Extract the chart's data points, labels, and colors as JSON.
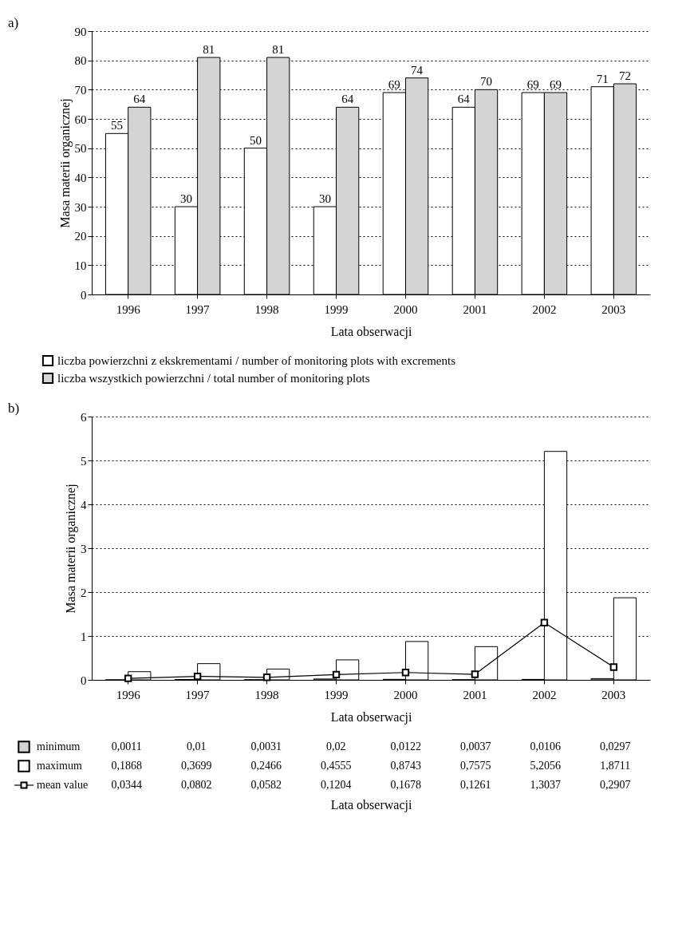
{
  "chart_data": [
    {
      "type": "bar",
      "annotations": [
        "a)"
      ],
      "categories": [
        "1996",
        "1997",
        "1998",
        "1999",
        "2000",
        "2001",
        "2002",
        "2003"
      ],
      "xlabel": "Lata obserwacji",
      "ylabel": "Masa materii organicznej",
      "ylim": [
        0,
        90
      ],
      "yticks": [
        0,
        10,
        20,
        30,
        40,
        50,
        60,
        70,
        80,
        90
      ],
      "grid": "y",
      "legend": "bottom",
      "data_labels": true,
      "series": [
        {
          "name": "liczba powierzchni z ekskrementami / number of monitoring plots with excrements",
          "color": "#ffffff",
          "values": [
            55,
            30,
            50,
            30,
            69,
            64,
            69,
            71
          ]
        },
        {
          "name": "liczba wszystkich powierzchni / total number of monitoring plots",
          "color": "#d4d4d4",
          "values": [
            64,
            81,
            81,
            64,
            74,
            70,
            69,
            72
          ]
        }
      ]
    },
    {
      "type": "bar",
      "annotations": [
        "b)"
      ],
      "categories": [
        "1996",
        "1997",
        "1998",
        "1999",
        "2000",
        "2001",
        "2002",
        "2003"
      ],
      "xlabel": "Lata obserwacji",
      "ylabel": "Masa materii organicznej",
      "ylim": [
        0,
        6
      ],
      "yticks": [
        0,
        1,
        2,
        3,
        4,
        5,
        6
      ],
      "grid": "y",
      "legend": "bottom left",
      "series": [
        {
          "name": "minimum",
          "color": "#d4d4d4",
          "values": [
            0.0011,
            0.01,
            0.0031,
            0.02,
            0.0122,
            0.0037,
            0.0106,
            0.0297
          ],
          "value_labels": [
            "0,0011",
            "0,01",
            "0,0031",
            "0,02",
            "0,0122",
            "0,0037",
            "0,0106",
            "0,0297"
          ]
        },
        {
          "name": "maximum",
          "color": "#ffffff",
          "values": [
            0.1868,
            0.3699,
            0.2466,
            0.4555,
            0.8743,
            0.7575,
            5.2056,
            1.8711
          ],
          "value_labels": [
            "0,1868",
            "0,3699",
            "0,2466",
            "0,4555",
            "0,8743",
            "0,7575",
            "5,2056",
            "1,8711"
          ]
        },
        {
          "name": "mean value",
          "type": "line",
          "marker": "square",
          "color": "#000000",
          "values": [
            0.0344,
            0.0802,
            0.0582,
            0.1204,
            0.1678,
            0.1261,
            1.3037,
            0.2907
          ],
          "value_labels": [
            "0,0344",
            "0,0802",
            "0,0582",
            "0,1204",
            "0,1678",
            "0,1261",
            "1,3037",
            "0,2907"
          ]
        }
      ]
    }
  ]
}
